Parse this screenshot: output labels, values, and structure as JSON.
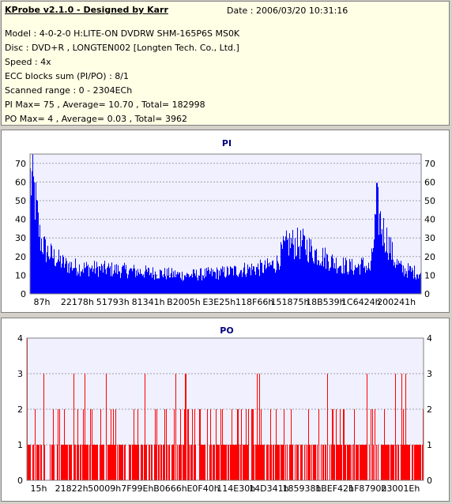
{
  "header": {
    "title": "KProbe v2.1.0 - Designed by Karr",
    "date": "Date : 2006/03/20 10:31:16",
    "lines": [
      "Model : 4-0-2-0 H:LITE-ON DVDRW SHM-165P6S MS0K",
      "Disc : DVD+R , LONGTEN002 [Longten Tech. Co., Ltd.]",
      "Speed : 4x",
      "ECC blocks sum (PI/PO) : 8/1",
      "Scanned range : 0 - 2304ECh",
      "PI Max= 75 , Average= 10.70 , Total= 182998",
      "PO Max= 4 , Average= 0.03 , Total= 3962"
    ]
  },
  "colors": {
    "bars": "#0000ff",
    "po_bars": "#ff0000",
    "plot_bg": "#f0f0ff",
    "grid": "#a0a0a0",
    "title": "#000080"
  },
  "chart_data": [
    {
      "type": "bar",
      "title": "PI",
      "ylim": [
        0,
        75
      ],
      "yticks": [
        0,
        10,
        20,
        30,
        40,
        50,
        60,
        70
      ],
      "xticks": [
        "87h",
        "22178h",
        "51793h",
        "81341h",
        "B2005h",
        "E3E25h",
        "118F66h",
        "151875h",
        "18B539h",
        "1C6424h",
        "200241h"
      ],
      "grid": true,
      "profile": [
        [
          0,
          74
        ],
        [
          0.005,
          73
        ],
        [
          0.012,
          62
        ],
        [
          0.025,
          36
        ],
        [
          0.04,
          28
        ],
        [
          0.06,
          24
        ],
        [
          0.09,
          19
        ],
        [
          0.13,
          17
        ],
        [
          0.2,
          16
        ],
        [
          0.3,
          14
        ],
        [
          0.4,
          12
        ],
        [
          0.5,
          14
        ],
        [
          0.55,
          16
        ],
        [
          0.6,
          17
        ],
        [
          0.63,
          20
        ],
        [
          0.645,
          28
        ],
        [
          0.66,
          33
        ],
        [
          0.7,
          32
        ],
        [
          0.72,
          28
        ],
        [
          0.75,
          24
        ],
        [
          0.78,
          20
        ],
        [
          0.81,
          18
        ],
        [
          0.83,
          17
        ],
        [
          0.85,
          19
        ],
        [
          0.87,
          16
        ],
        [
          0.88,
          40
        ],
        [
          0.885,
          57
        ],
        [
          0.892,
          50
        ],
        [
          0.9,
          42
        ],
        [
          0.91,
          36
        ],
        [
          0.92,
          30
        ],
        [
          0.93,
          22
        ],
        [
          0.95,
          16
        ],
        [
          0.97,
          15
        ],
        [
          1,
          13
        ]
      ],
      "max": 75,
      "average": 10.7
    },
    {
      "type": "bar",
      "title": "PO",
      "ylim": [
        0,
        4
      ],
      "yticks": [
        0,
        1,
        2,
        3,
        4
      ],
      "xticks": [
        "15h",
        "21822h",
        "50009h",
        "7F99Eh",
        "B0666h",
        "E0F40h",
        "114E30h",
        "14D341h",
        "185938h",
        "1BEF42h",
        "1F8790h",
        "23001Eh"
      ],
      "grid": true,
      "values": {
        "max": 4,
        "typical": 1,
        "spike_levels": [
          2,
          3
        ]
      }
    }
  ]
}
